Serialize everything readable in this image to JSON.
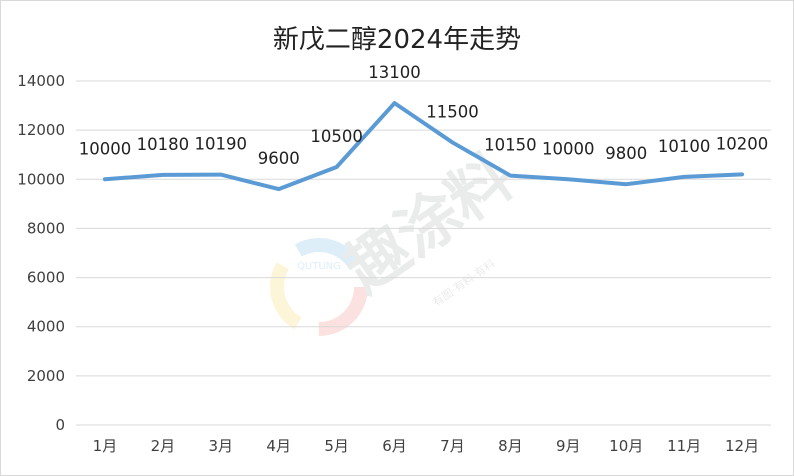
{
  "chart_data": {
    "type": "line",
    "title": "新戊二醇2024年走势",
    "categories": [
      "1月",
      "2月",
      "3月",
      "4月",
      "5月",
      "6月",
      "7月",
      "8月",
      "9月",
      "10月",
      "11月",
      "12月"
    ],
    "series": [
      {
        "values": [
          10000,
          10180,
          10190,
          9600,
          10500,
          13100,
          11500,
          10150,
          10000,
          9800,
          10100,
          10200
        ]
      }
    ],
    "ylim": [
      0,
      14000
    ],
    "yticks": [
      0,
      2000,
      4000,
      6000,
      8000,
      10000,
      12000,
      14000
    ],
    "grid": true,
    "legend": "none",
    "line_color": "#5B9BD5"
  },
  "watermark": {
    "text": "趣涂料",
    "subtext": "有图·有料·有料",
    "logo_text": "QUTUNG"
  }
}
